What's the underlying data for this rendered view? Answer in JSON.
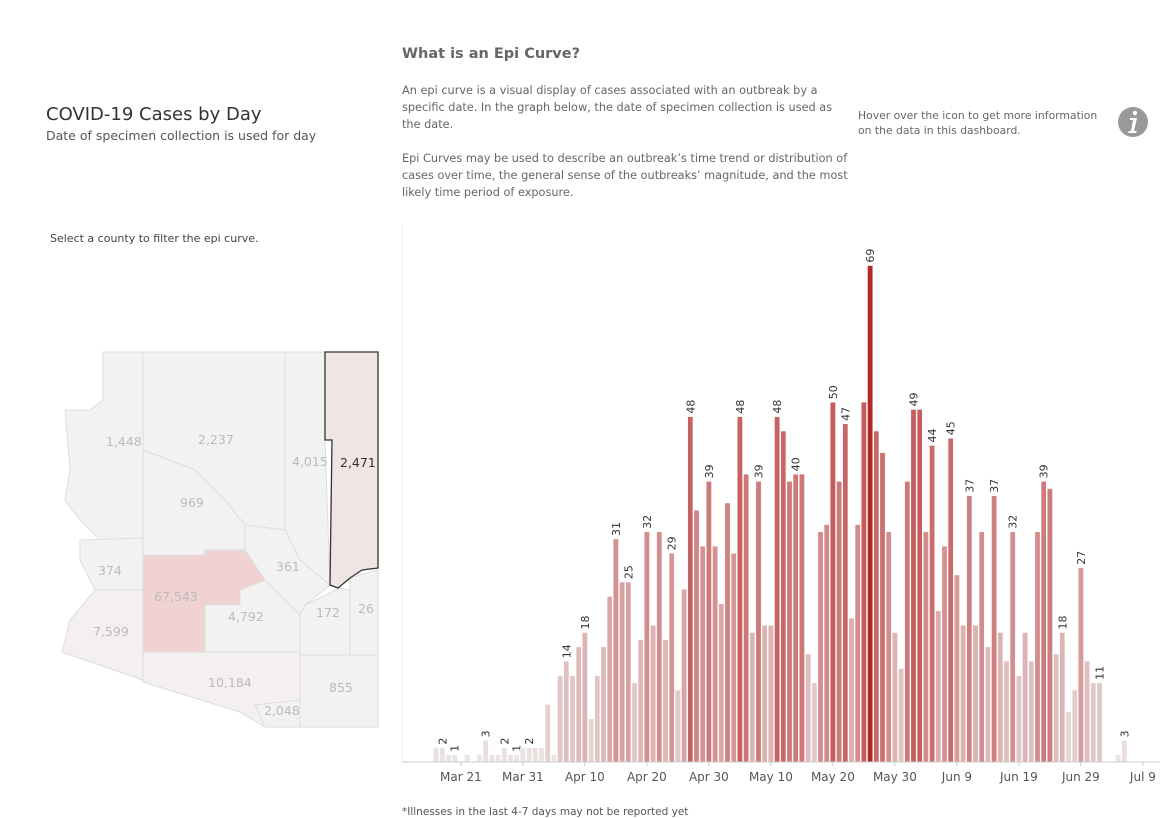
{
  "header": {
    "title": "COVID-19 Cases by Day",
    "subtitle": "Date of specimen collection is used for day",
    "filter_note": "Select a county to filter the epi curve."
  },
  "info": {
    "heading": "What is an Epi Curve?",
    "paragraphs": [
      "An epi curve is a visual display of cases associated with an outbreak by a specific date. In the graph below, the date of specimen collection is used as the date.",
      "Epi Curves may be used to describe an outbreak’s time trend or distribution of cases over time, the general sense of the outbreaks’ magnitude, and the most likely time period of exposure."
    ],
    "hover_note": "Hover over the icon to get more information on the data in this dashboard.",
    "footnote": "*Illnesses in the last 4-7 days may not be reported yet"
  },
  "map": {
    "counties": [
      "1,448",
      "2,237",
      "969",
      "4,015",
      "2,471",
      "374",
      "67,543",
      "361",
      "4,792",
      "7,599",
      "172",
      "26",
      "10,184",
      "2,048",
      "855"
    ]
  },
  "chart_data": {
    "type": "bar",
    "color_low": "#ebe6e6",
    "color_high": "#b52828",
    "ylim": [
      0,
      72
    ],
    "categories": [
      null,
      null,
      null,
      null,
      "Mar 21",
      null,
      null,
      null,
      null,
      null,
      null,
      null,
      null,
      null,
      "Mar 31",
      null,
      null,
      null,
      null,
      null,
      null,
      null,
      null,
      null,
      "Apr 10",
      null,
      null,
      null,
      null,
      null,
      null,
      null,
      null,
      null,
      "Apr 20",
      null,
      null,
      null,
      null,
      null,
      null,
      null,
      null,
      null,
      "Apr 30",
      null,
      null,
      null,
      null,
      null,
      null,
      null,
      null,
      null,
      "May 10",
      null,
      null,
      null,
      null,
      null,
      null,
      null,
      null,
      null,
      "May 20",
      null,
      null,
      null,
      null,
      null,
      null,
      null,
      null,
      null,
      "May 30",
      null,
      null,
      null,
      null,
      null,
      null,
      null,
      null,
      null,
      "Jun 9",
      null,
      null,
      null,
      null,
      null,
      null,
      null,
      null,
      null,
      "Jun 19",
      null,
      null,
      null,
      null,
      null,
      null,
      null,
      null,
      null,
      "Jun 29",
      null,
      null,
      null,
      null,
      null,
      null,
      null,
      null,
      null,
      "Jul 9"
    ],
    "values": [
      2,
      2,
      1,
      1,
      0,
      1,
      0,
      1,
      3,
      1,
      1,
      2,
      1,
      1,
      2,
      2,
      2,
      2,
      8,
      1,
      12,
      14,
      12,
      16,
      18,
      6,
      12,
      16,
      23,
      31,
      25,
      25,
      11,
      17,
      32,
      19,
      32,
      17,
      29,
      10,
      24,
      48,
      35,
      30,
      39,
      30,
      22,
      36,
      29,
      48,
      40,
      18,
      39,
      19,
      19,
      48,
      46,
      39,
      40,
      40,
      15,
      11,
      32,
      33,
      50,
      39,
      47,
      20,
      33,
      50,
      69,
      46,
      43,
      32,
      18,
      13,
      39,
      49,
      49,
      32,
      44,
      21,
      30,
      45,
      26,
      19,
      37,
      19,
      32,
      16,
      37,
      18,
      14,
      32,
      12,
      18,
      14,
      32,
      39,
      38,
      15,
      18,
      7,
      10,
      27,
      14,
      11,
      11,
      0,
      0,
      1,
      3,
      0,
      0,
      0
    ],
    "value_labels": [
      null,
      "2",
      null,
      "1",
      null,
      null,
      null,
      null,
      "3",
      null,
      null,
      "2",
      null,
      "1",
      null,
      "2",
      null,
      null,
      null,
      null,
      null,
      "14",
      null,
      null,
      "18",
      null,
      null,
      null,
      null,
      "31",
      null,
      "25",
      null,
      null,
      "32",
      null,
      null,
      null,
      "29",
      null,
      null,
      "48",
      null,
      null,
      "39",
      null,
      null,
      null,
      null,
      "48",
      null,
      null,
      "39",
      null,
      null,
      "48",
      null,
      null,
      "40",
      null,
      null,
      null,
      null,
      null,
      "50",
      null,
      "47",
      null,
      null,
      null,
      "69",
      null,
      null,
      null,
      null,
      null,
      null,
      "49",
      null,
      null,
      "44",
      null,
      null,
      "45",
      null,
      null,
      "37",
      null,
      null,
      null,
      "37",
      null,
      null,
      "32",
      null,
      null,
      null,
      null,
      "39",
      null,
      null,
      "18",
      null,
      null,
      "27",
      null,
      null,
      "11",
      null,
      null,
      null,
      "3",
      null,
      null,
      null
    ]
  }
}
